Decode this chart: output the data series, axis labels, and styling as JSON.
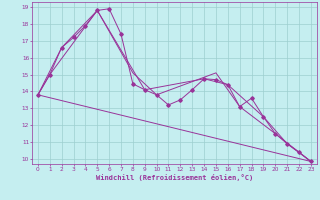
{
  "xlabel": "Windchill (Refroidissement éolien,°C)",
  "background_color": "#c5eef0",
  "line_color": "#993399",
  "grid_color": "#9ecfcf",
  "xlim": [
    -0.5,
    23.5
  ],
  "ylim": [
    9.7,
    19.3
  ],
  "xticks": [
    0,
    1,
    2,
    3,
    4,
    5,
    6,
    7,
    8,
    9,
    10,
    11,
    12,
    13,
    14,
    15,
    16,
    17,
    18,
    19,
    20,
    21,
    22,
    23
  ],
  "yticks": [
    10,
    11,
    12,
    13,
    14,
    15,
    16,
    17,
    18,
    19
  ],
  "series_main": [
    [
      0,
      13.8
    ],
    [
      1,
      15.0
    ],
    [
      2,
      16.6
    ],
    [
      3,
      17.2
    ],
    [
      4,
      17.9
    ],
    [
      5,
      18.8
    ],
    [
      6,
      18.9
    ],
    [
      7,
      17.4
    ],
    [
      8,
      14.45
    ],
    [
      9,
      14.1
    ],
    [
      10,
      13.8
    ],
    [
      11,
      13.2
    ],
    [
      12,
      13.5
    ],
    [
      13,
      14.1
    ],
    [
      14,
      14.75
    ],
    [
      15,
      14.7
    ],
    [
      16,
      14.4
    ],
    [
      17,
      13.1
    ],
    [
      18,
      13.6
    ],
    [
      19,
      12.5
    ],
    [
      20,
      11.5
    ],
    [
      21,
      10.9
    ],
    [
      22,
      10.4
    ],
    [
      23,
      9.85
    ]
  ],
  "line_straight": [
    [
      0,
      13.8
    ],
    [
      23,
      9.85
    ]
  ],
  "line_trend1": [
    [
      0,
      13.8
    ],
    [
      2,
      16.6
    ],
    [
      5,
      18.8
    ],
    [
      8,
      15.1
    ],
    [
      10,
      13.8
    ],
    [
      15,
      15.1
    ],
    [
      17,
      13.1
    ],
    [
      20,
      11.5
    ],
    [
      23,
      9.85
    ]
  ],
  "line_trend2": [
    [
      0,
      13.8
    ],
    [
      1,
      15.0
    ],
    [
      5,
      18.8
    ],
    [
      9,
      14.1
    ],
    [
      14,
      14.75
    ],
    [
      16,
      14.4
    ],
    [
      19,
      12.5
    ],
    [
      21,
      10.9
    ],
    [
      23,
      9.85
    ]
  ]
}
